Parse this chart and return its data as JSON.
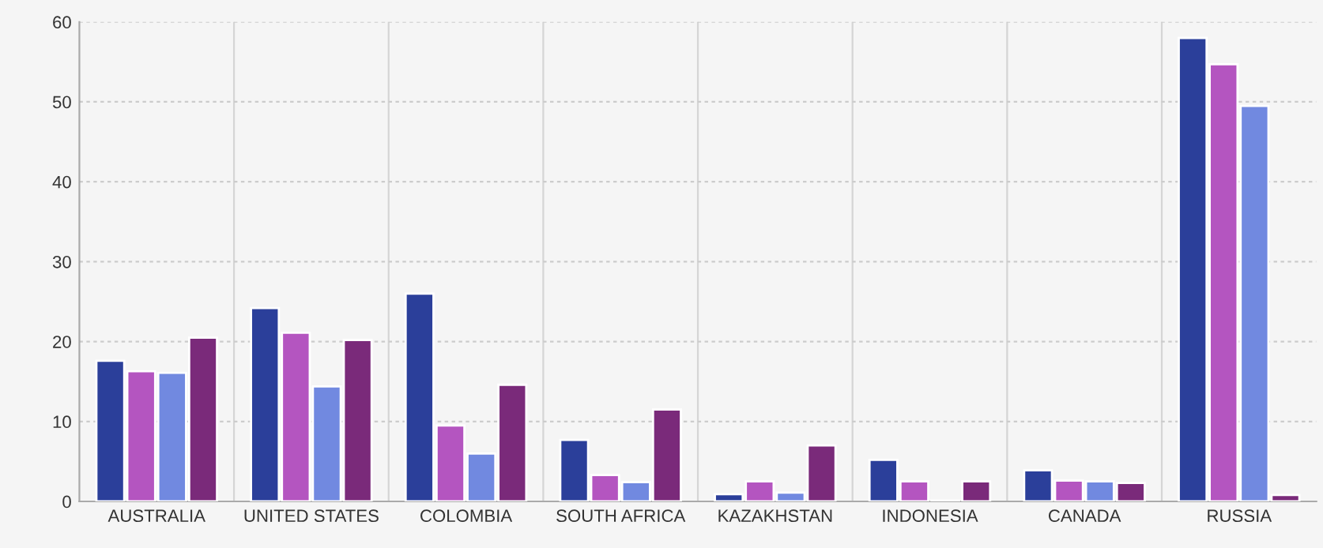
{
  "chart_data": {
    "type": "bar",
    "categories": [
      "AUSTRALIA",
      "UNITED STATES",
      "COLOMBIA",
      "SOUTH AFRICA",
      "KAZAKHSTAN",
      "INDONESIA",
      "CANADA",
      "RUSSIA"
    ],
    "series": [
      {
        "color": "#2b3f9a",
        "values": [
          17.6,
          24.2,
          26.0,
          7.7,
          0.9,
          5.2,
          3.9,
          58.0
        ]
      },
      {
        "color": "#b455c0",
        "values": [
          16.3,
          21.1,
          9.5,
          3.3,
          2.5,
          2.5,
          2.6,
          54.7
        ]
      },
      {
        "color": "#7189e0",
        "values": [
          16.1,
          14.4,
          6.0,
          2.4,
          1.1,
          0.1,
          2.5,
          49.5
        ]
      },
      {
        "color": "#7a2a7a",
        "values": [
          20.5,
          20.2,
          14.6,
          11.5,
          7.0,
          2.5,
          2.3,
          0.8
        ]
      }
    ],
    "ylim": [
      0,
      60
    ],
    "yticks": [
      0,
      10,
      20,
      30,
      40,
      50,
      60
    ],
    "grid": true
  }
}
